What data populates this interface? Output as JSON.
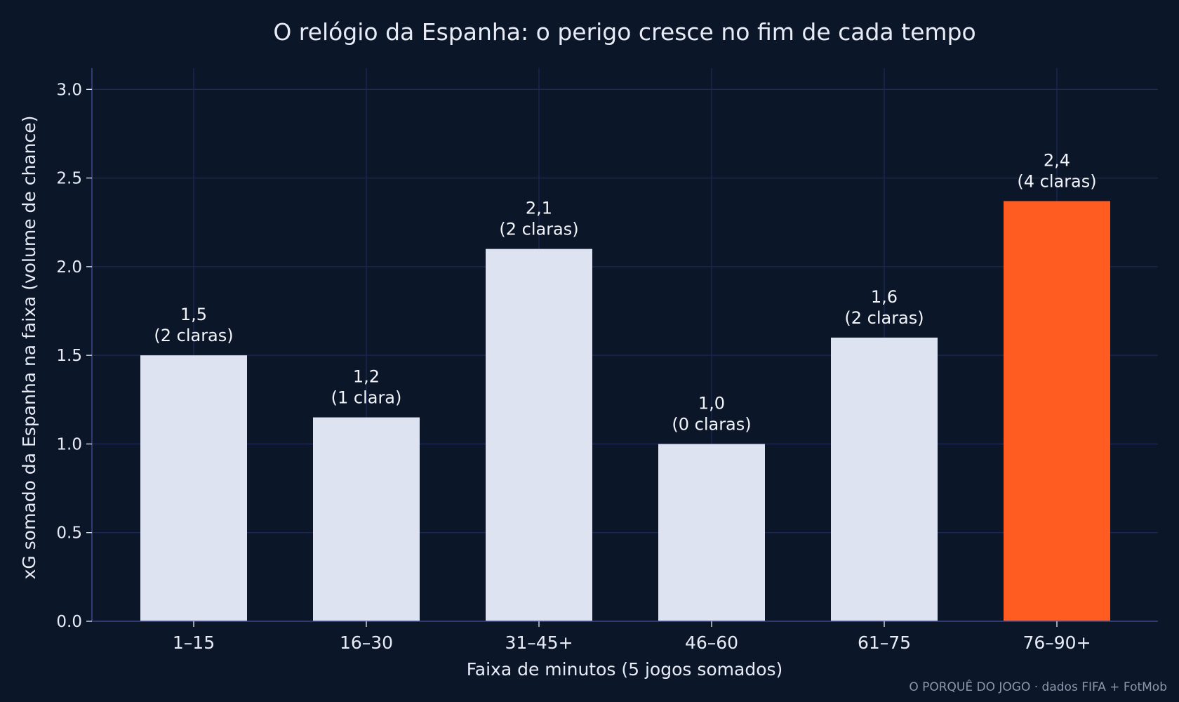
{
  "title": "O relógio da Espanha: o perigo cresce no fim de cada tempo",
  "credit": "O PORQUÊ DO JOGO · dados FIFA + FotMob",
  "colors": {
    "background": "#0b1628",
    "grid": "#1c2a55",
    "axis": "#3a4585",
    "bar_default": "#dde3f0",
    "bar_highlight": "#ff5c22",
    "text": "#e8ecf6"
  },
  "chart_data": {
    "type": "bar",
    "title": "O relógio da Espanha: o perigo cresce no fim de cada tempo",
    "xlabel": "Faixa de minutos (5 jogos somados)",
    "ylabel": "xG somado da Espanha na faixa (volume de chance)",
    "categories": [
      "1–15",
      "16–30",
      "31–45+",
      "46–60",
      "61–75",
      "76–90+"
    ],
    "values": [
      1.5,
      1.15,
      2.1,
      1.0,
      1.6,
      2.37
    ],
    "value_labels": [
      "1,5",
      "1,2",
      "2,1",
      "1,0",
      "1,6",
      "2,4"
    ],
    "clear_chances_labels": [
      "(2 claras)",
      "(1 clara)",
      "(2 claras)",
      "(0 claras)",
      "(2 claras)",
      "(4 claras)"
    ],
    "highlight_index": 5,
    "ylim": [
      0,
      3.12
    ],
    "yticks": [
      0.0,
      0.5,
      1.0,
      1.5,
      2.0,
      2.5,
      3.0
    ],
    "ytick_labels": [
      "0.0",
      "0.5",
      "1.0",
      "1.5",
      "2.0",
      "2.5",
      "3.0"
    ],
    "grid": true,
    "legend": "none"
  }
}
